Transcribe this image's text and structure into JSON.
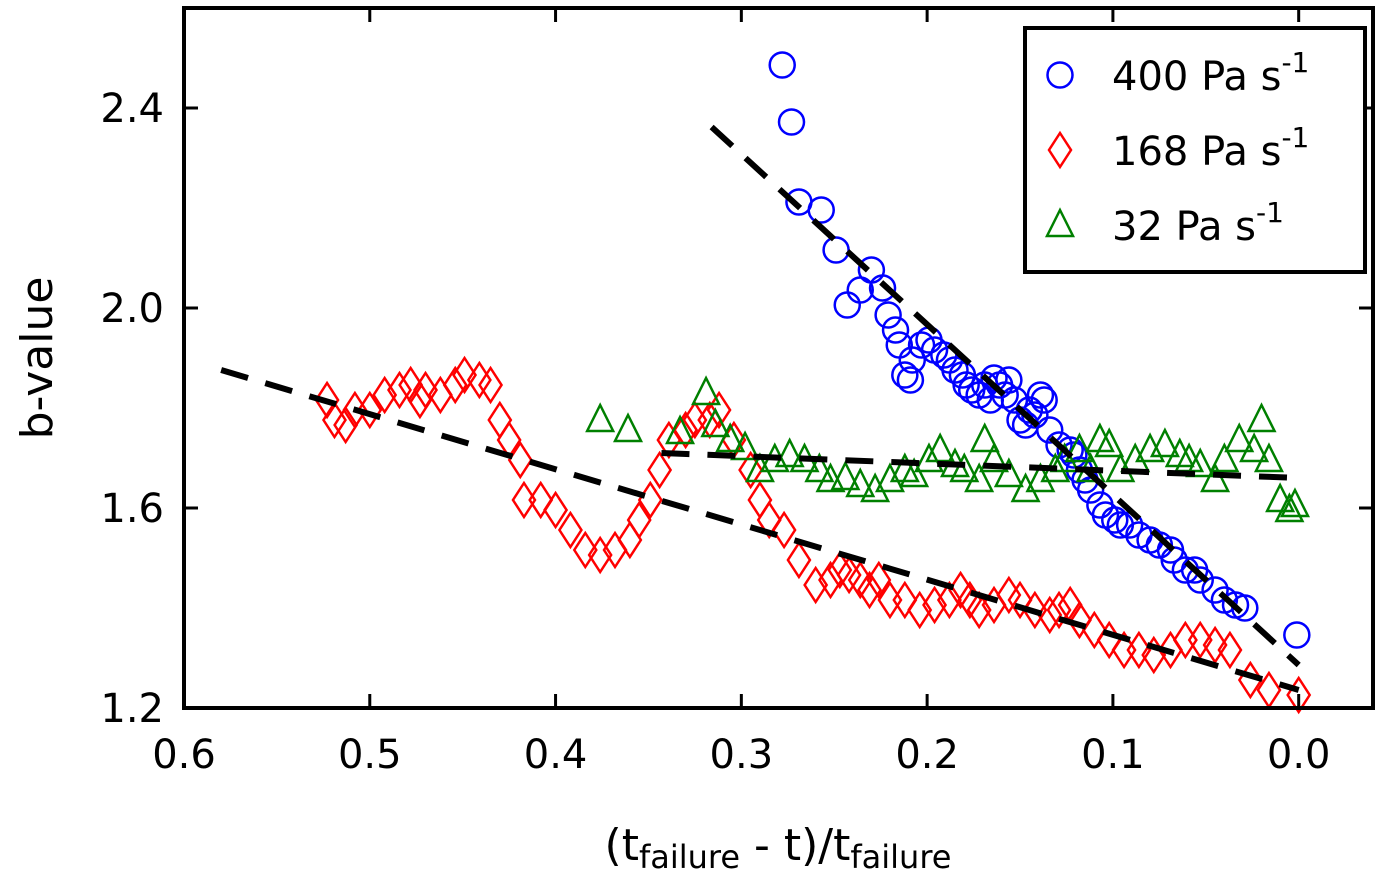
{
  "chart_data": {
    "type": "scatter",
    "title": "",
    "xlabel": {
      "prefix": "(t",
      "sub1": "failure",
      "middle": " - t)/t",
      "sub2": "failure"
    },
    "ylabel": "b-value",
    "xlim": [
      0.6,
      -0.04
    ],
    "ylim": [
      1.2,
      2.6
    ],
    "x_reversed": true,
    "xticks": [
      0.6,
      0.5,
      0.4,
      0.3,
      0.2,
      0.1,
      0.0
    ],
    "xtick_labels": [
      "0.6",
      "0.5",
      "0.4",
      "0.3",
      "0.2",
      "0.1",
      "0.0"
    ],
    "yticks": [
      1.2,
      1.6,
      2.0,
      2.4
    ],
    "ytick_labels": [
      "1.2",
      "1.6",
      "2.0",
      "2.4"
    ],
    "grid": false,
    "legend_position": "top-right",
    "series": [
      {
        "name": "400 Pa s",
        "unit_sup": "-1",
        "marker": "circle",
        "color": "#0000ff",
        "points": [
          [
            0.278,
            2.486
          ],
          [
            0.273,
            2.372
          ],
          [
            0.269,
            2.212
          ],
          [
            0.257,
            2.196
          ],
          [
            0.249,
            2.116
          ],
          [
            0.243,
            2.006
          ],
          [
            0.236,
            2.036
          ],
          [
            0.23,
            2.076
          ],
          [
            0.224,
            2.04
          ],
          [
            0.221,
            1.986
          ],
          [
            0.217,
            1.956
          ],
          [
            0.215,
            1.926
          ],
          [
            0.212,
            1.866
          ],
          [
            0.209,
            1.856
          ],
          [
            0.208,
            1.896
          ],
          [
            0.203,
            1.926
          ],
          [
            0.199,
            1.936
          ],
          [
            0.196,
            1.916
          ],
          [
            0.191,
            1.906
          ],
          [
            0.188,
            1.896
          ],
          [
            0.185,
            1.876
          ],
          [
            0.181,
            1.866
          ],
          [
            0.179,
            1.846
          ],
          [
            0.176,
            1.836
          ],
          [
            0.172,
            1.826
          ],
          [
            0.169,
            1.846
          ],
          [
            0.166,
            1.816
          ],
          [
            0.164,
            1.86
          ],
          [
            0.161,
            1.846
          ],
          [
            0.158,
            1.826
          ],
          [
            0.156,
            1.856
          ],
          [
            0.153,
            1.816
          ],
          [
            0.15,
            1.776
          ],
          [
            0.147,
            1.766
          ],
          [
            0.145,
            1.796
          ],
          [
            0.142,
            1.786
          ],
          [
            0.139,
            1.826
          ],
          [
            0.137,
            1.816
          ],
          [
            0.134,
            1.756
          ],
          [
            0.129,
            1.726
          ],
          [
            0.123,
            1.716
          ],
          [
            0.121,
            1.706
          ],
          [
            0.118,
            1.676
          ],
          [
            0.115,
            1.656
          ],
          [
            0.112,
            1.636
          ],
          [
            0.107,
            1.606
          ],
          [
            0.104,
            1.586
          ],
          [
            0.099,
            1.576
          ],
          [
            0.096,
            1.566
          ],
          [
            0.091,
            1.566
          ],
          [
            0.086,
            1.546
          ],
          [
            0.08,
            1.536
          ],
          [
            0.075,
            1.526
          ],
          [
            0.069,
            1.516
          ],
          [
            0.067,
            1.496
          ],
          [
            0.061,
            1.476
          ],
          [
            0.056,
            1.476
          ],
          [
            0.053,
            1.456
          ],
          [
            0.045,
            1.436
          ],
          [
            0.04,
            1.416
          ],
          [
            0.034,
            1.406
          ],
          [
            0.029,
            1.4
          ],
          [
            0.001,
            1.346
          ]
        ]
      },
      {
        "name": "168 Pa s",
        "unit_sup": "-1",
        "marker": "diamond",
        "color": "#ff0000",
        "points": [
          [
            0.523,
            1.816
          ],
          [
            0.519,
            1.776
          ],
          [
            0.513,
            1.766
          ],
          [
            0.508,
            1.796
          ],
          [
            0.5,
            1.796
          ],
          [
            0.492,
            1.826
          ],
          [
            0.484,
            1.836
          ],
          [
            0.478,
            1.846
          ],
          [
            0.473,
            1.816
          ],
          [
            0.47,
            1.836
          ],
          [
            0.462,
            1.826
          ],
          [
            0.454,
            1.846
          ],
          [
            0.449,
            1.866
          ],
          [
            0.441,
            1.856
          ],
          [
            0.435,
            1.846
          ],
          [
            0.43,
            1.776
          ],
          [
            0.425,
            1.736
          ],
          [
            0.419,
            1.696
          ],
          [
            0.417,
            1.616
          ],
          [
            0.408,
            1.616
          ],
          [
            0.4,
            1.596
          ],
          [
            0.392,
            1.556
          ],
          [
            0.384,
            1.516
          ],
          [
            0.376,
            1.506
          ],
          [
            0.368,
            1.516
          ],
          [
            0.36,
            1.536
          ],
          [
            0.355,
            1.576
          ],
          [
            0.349,
            1.616
          ],
          [
            0.344,
            1.676
          ],
          [
            0.339,
            1.736
          ],
          [
            0.33,
            1.756
          ],
          [
            0.325,
            1.776
          ],
          [
            0.317,
            1.776
          ],
          [
            0.312,
            1.796
          ],
          [
            0.304,
            1.736
          ],
          [
            0.295,
            1.676
          ],
          [
            0.29,
            1.616
          ],
          [
            0.285,
            1.576
          ],
          [
            0.277,
            1.556
          ],
          [
            0.269,
            1.496
          ],
          [
            0.26,
            1.446
          ],
          [
            0.252,
            1.456
          ],
          [
            0.247,
            1.476
          ],
          [
            0.242,
            1.466
          ],
          [
            0.236,
            1.456
          ],
          [
            0.231,
            1.436
          ],
          [
            0.226,
            1.456
          ],
          [
            0.22,
            1.416
          ],
          [
            0.212,
            1.416
          ],
          [
            0.204,
            1.396
          ],
          [
            0.196,
            1.406
          ],
          [
            0.188,
            1.416
          ],
          [
            0.182,
            1.436
          ],
          [
            0.177,
            1.416
          ],
          [
            0.172,
            1.396
          ],
          [
            0.164,
            1.406
          ],
          [
            0.156,
            1.426
          ],
          [
            0.15,
            1.416
          ],
          [
            0.142,
            1.396
          ],
          [
            0.134,
            1.386
          ],
          [
            0.129,
            1.396
          ],
          [
            0.123,
            1.406
          ],
          [
            0.118,
            1.376
          ],
          [
            0.11,
            1.356
          ],
          [
            0.102,
            1.336
          ],
          [
            0.094,
            1.316
          ],
          [
            0.086,
            1.316
          ],
          [
            0.078,
            1.306
          ],
          [
            0.069,
            1.316
          ],
          [
            0.061,
            1.336
          ],
          [
            0.053,
            1.336
          ],
          [
            0.045,
            1.326
          ],
          [
            0.037,
            1.316
          ],
          [
            0.026,
            1.256
          ],
          [
            0.016,
            1.236
          ],
          [
            0.0,
            1.226
          ]
        ]
      },
      {
        "name": "32 Pa s",
        "unit_sup": "-1",
        "marker": "triangle",
        "color": "#008000",
        "points": [
          [
            0.376,
            1.776
          ],
          [
            0.361,
            1.756
          ],
          [
            0.333,
            1.752
          ],
          [
            0.319,
            1.83
          ],
          [
            0.314,
            1.766
          ],
          [
            0.306,
            1.736
          ],
          [
            0.298,
            1.72
          ],
          [
            0.29,
            1.676
          ],
          [
            0.282,
            1.696
          ],
          [
            0.274,
            1.706
          ],
          [
            0.266,
            1.696
          ],
          [
            0.258,
            1.676
          ],
          [
            0.252,
            1.656
          ],
          [
            0.244,
            1.66
          ],
          [
            0.236,
            1.646
          ],
          [
            0.228,
            1.636
          ],
          [
            0.22,
            1.656
          ],
          [
            0.212,
            1.676
          ],
          [
            0.207,
            1.666
          ],
          [
            0.199,
            1.696
          ],
          [
            0.193,
            1.716
          ],
          [
            0.185,
            1.686
          ],
          [
            0.18,
            1.676
          ],
          [
            0.172,
            1.656
          ],
          [
            0.169,
            1.736
          ],
          [
            0.164,
            1.696
          ],
          [
            0.156,
            1.666
          ],
          [
            0.147,
            1.636
          ],
          [
            0.139,
            1.656
          ],
          [
            0.131,
            1.676
          ],
          [
            0.126,
            1.696
          ],
          [
            0.118,
            1.716
          ],
          [
            0.112,
            1.676
          ],
          [
            0.107,
            1.736
          ],
          [
            0.102,
            1.726
          ],
          [
            0.096,
            1.676
          ],
          [
            0.088,
            1.696
          ],
          [
            0.08,
            1.716
          ],
          [
            0.072,
            1.726
          ],
          [
            0.064,
            1.706
          ],
          [
            0.059,
            1.696
          ],
          [
            0.053,
            1.686
          ],
          [
            0.045,
            1.656
          ],
          [
            0.04,
            1.696
          ],
          [
            0.032,
            1.736
          ],
          [
            0.024,
            1.716
          ],
          [
            0.02,
            1.776
          ],
          [
            0.016,
            1.696
          ],
          [
            0.01,
            1.616
          ],
          [
            0.005,
            1.596
          ],
          [
            0.002,
            1.606
          ]
        ]
      }
    ],
    "fit_lines": [
      {
        "name": "fit-400",
        "from": [
          0.316,
          2.362
        ],
        "to": [
          0.0,
          1.286
        ]
      },
      {
        "name": "fit-168",
        "from": [
          0.58,
          1.876
        ],
        "to": [
          0.0,
          1.236
        ]
      },
      {
        "name": "fit-32",
        "from": [
          0.343,
          1.71
        ],
        "to": [
          0.0,
          1.66
        ]
      }
    ]
  }
}
